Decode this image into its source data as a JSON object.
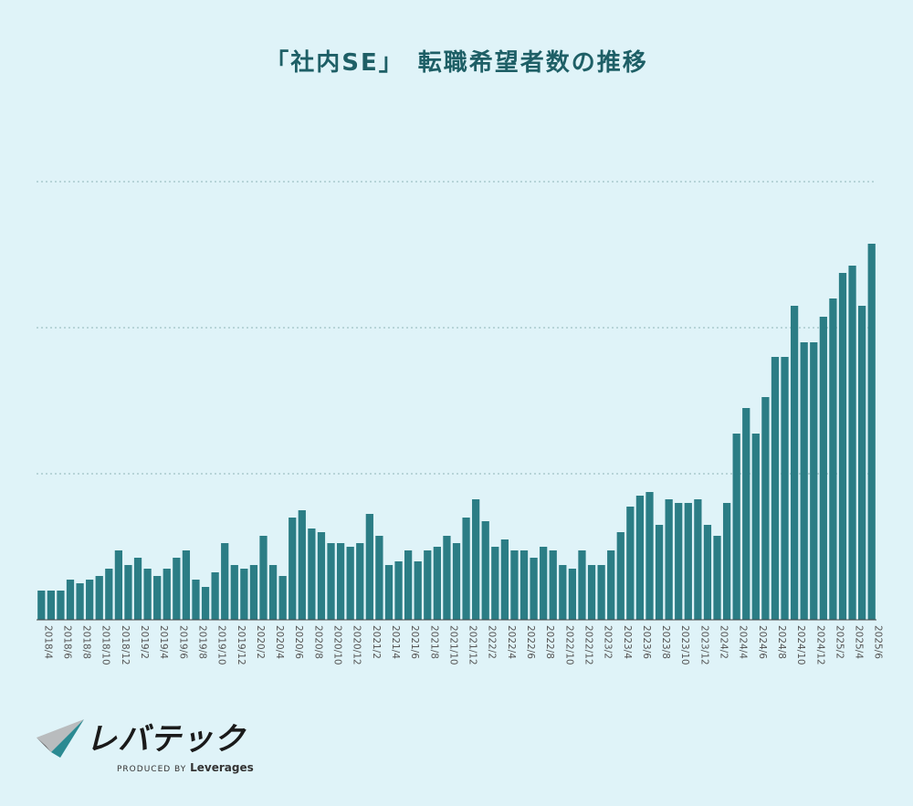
{
  "chart_data": {
    "type": "bar",
    "title": "「社内SE」　転職希望者数の推移",
    "xlabel": "",
    "ylabel": "",
    "ylim": [
      0,
      12
    ],
    "grid": true,
    "color": "#2b7d85",
    "categories": [
      "2018/4",
      "2018/5",
      "2018/6",
      "2018/7",
      "2018/8",
      "2018/9",
      "2018/10",
      "2018/11",
      "2018/12",
      "2019/1",
      "2019/2",
      "2019/3",
      "2019/4",
      "2019/5",
      "2019/6",
      "2019/7",
      "2019/8",
      "2019/9",
      "2019/10",
      "2019/11",
      "2019/12",
      "2020/1",
      "2020/2",
      "2020/3",
      "2020/4",
      "2020/5",
      "2020/6",
      "2020/7",
      "2020/8",
      "2020/9",
      "2020/10",
      "2020/11",
      "2020/12",
      "2021/1",
      "2021/2",
      "2021/3",
      "2021/4",
      "2021/5",
      "2021/6",
      "2021/7",
      "2021/8",
      "2021/9",
      "2021/10",
      "2021/11",
      "2021/12",
      "2022/1",
      "2022/2",
      "2022/3",
      "2022/4",
      "2022/5",
      "2022/6",
      "2022/7",
      "2022/8",
      "2022/9",
      "2022/10",
      "2022/11",
      "2022/12",
      "2023/1",
      "2023/2",
      "2023/3",
      "2023/4",
      "2023/5",
      "2023/6",
      "2023/7",
      "2023/8",
      "2023/9",
      "2023/10",
      "2023/11",
      "2023/12",
      "2024/1",
      "2024/2",
      "2024/3",
      "2024/4",
      "2024/5",
      "2024/6",
      "2024/7",
      "2024/8",
      "2024/9",
      "2024/10",
      "2024/11",
      "2024/12",
      "2025/1",
      "2025/2",
      "2025/3",
      "2025/4",
      "2025/5",
      "2025/6"
    ],
    "values": [
      0.8,
      0.8,
      0.8,
      1.1,
      1.0,
      1.1,
      1.2,
      1.4,
      1.9,
      1.5,
      1.7,
      1.4,
      1.2,
      1.4,
      1.7,
      1.9,
      1.1,
      0.9,
      1.3,
      2.1,
      1.5,
      1.4,
      1.5,
      2.3,
      1.5,
      1.2,
      2.8,
      3.0,
      2.5,
      2.4,
      2.1,
      2.1,
      2.0,
      2.1,
      2.9,
      2.3,
      1.5,
      1.6,
      1.9,
      1.6,
      1.9,
      2.0,
      2.3,
      2.1,
      2.8,
      3.3,
      2.7,
      2.0,
      2.2,
      1.9,
      1.9,
      1.7,
      2.0,
      1.9,
      1.5,
      1.4,
      1.9,
      1.5,
      1.5,
      1.9,
      2.4,
      3.1,
      3.4,
      3.5,
      2.6,
      3.3,
      3.2,
      3.2,
      3.3,
      2.6,
      2.3,
      3.2,
      5.1,
      5.8,
      5.1,
      6.1,
      7.2,
      7.2,
      8.6,
      7.6,
      7.6,
      8.3,
      8.8,
      9.5,
      9.7,
      8.6,
      10.3
    ],
    "tick_labels": [
      "2018/4",
      "2018/6",
      "2018/8",
      "2018/10",
      "2018/12",
      "2019/2",
      "2019/4",
      "2019/6",
      "2019/8",
      "2019/10",
      "2019/12",
      "2020/2",
      "2020/4",
      "2020/6",
      "2020/8",
      "2020/10",
      "2020/12",
      "2021/2",
      "2021/4",
      "2021/6",
      "2021/8",
      "2021/10",
      "2021/12",
      "2022/2",
      "2022/4",
      "2022/6",
      "2022/8",
      "2022/10",
      "2022/12",
      "2023/2",
      "2023/4",
      "2023/6",
      "2023/8",
      "2023/10",
      "2023/12",
      "2024/2",
      "2024/4",
      "2024/6",
      "2024/8",
      "2024/10",
      "2024/12",
      "2025/2",
      "2025/4",
      "2025/6"
    ]
  },
  "logo": {
    "wordmark": "レバテック",
    "tagline": "PRODUCED BY",
    "brand": "Leverages",
    "colors": {
      "teal": "#2b8a92",
      "dark": "#3c3c3c",
      "light": "#b9bcbe"
    }
  }
}
